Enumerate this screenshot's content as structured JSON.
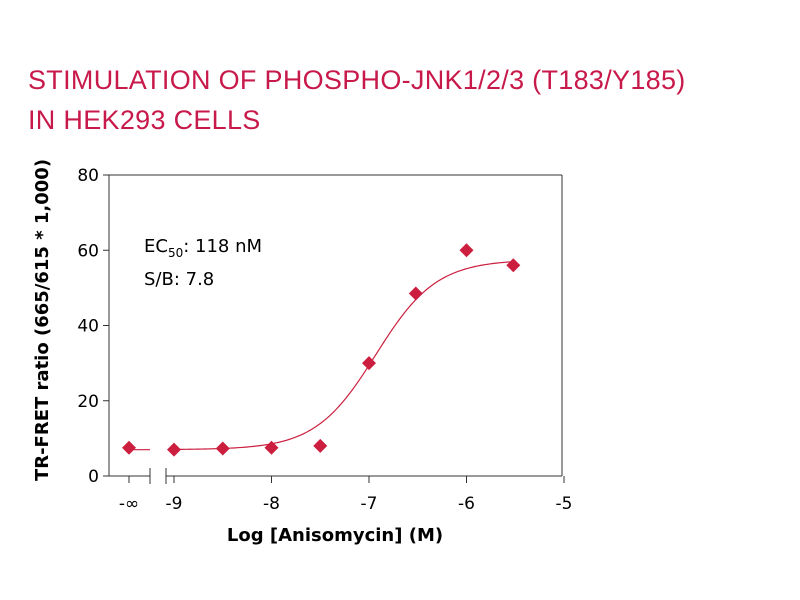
{
  "chart_data": {
    "type": "scatter",
    "title_lines": [
      "STIMULATION OF PHOSPHO-JNK1/2/3 (T183/Y185)",
      "IN HEK293 CELLS"
    ],
    "xlabel": "Log [Anisomycin] (M)",
    "ylabel": "TR-FRET ratio (665/615 * 1,000)",
    "xlim": [
      -9.5,
      -5
    ],
    "ylim": [
      0,
      80
    ],
    "x_ticks": [
      {
        "value": "-inf",
        "label": "-∞"
      },
      {
        "value": -9,
        "label": "-9"
      },
      {
        "value": -8,
        "label": "-8"
      },
      {
        "value": -7,
        "label": "-7"
      },
      {
        "value": -6,
        "label": "-6"
      },
      {
        "value": -5,
        "label": "-5"
      }
    ],
    "y_ticks": [
      0,
      20,
      40,
      60,
      80
    ],
    "x_axis_break": true,
    "grid": false,
    "annotations": {
      "ec50_prefix": "EC",
      "ec50_sub": "50",
      "ec50_value": ": 118 nM",
      "sb": "S/B: 7.8"
    },
    "series": [
      {
        "marker": "diamond",
        "color": "#cc1f3f",
        "points": [
          {
            "x": "-inf",
            "y": 7.5
          },
          {
            "x": -9.0,
            "y": 7.0
          },
          {
            "x": -8.5,
            "y": 7.3
          },
          {
            "x": -8.0,
            "y": 7.5
          },
          {
            "x": -7.5,
            "y": 8.0
          },
          {
            "x": -7.0,
            "y": 30.0
          },
          {
            "x": -6.52,
            "y": 48.5
          },
          {
            "x": -6.0,
            "y": 60.0
          },
          {
            "x": -5.52,
            "y": 56.0
          }
        ]
      }
    ],
    "fit": {
      "type": "4PL",
      "color": "#cc1f3f",
      "bottom": 7.0,
      "top": 57.5,
      "log_ec50": -6.93,
      "hill": 1.4,
      "x_range": [
        -9.0,
        -5.52
      ],
      "baseline_y": 7.0
    }
  }
}
